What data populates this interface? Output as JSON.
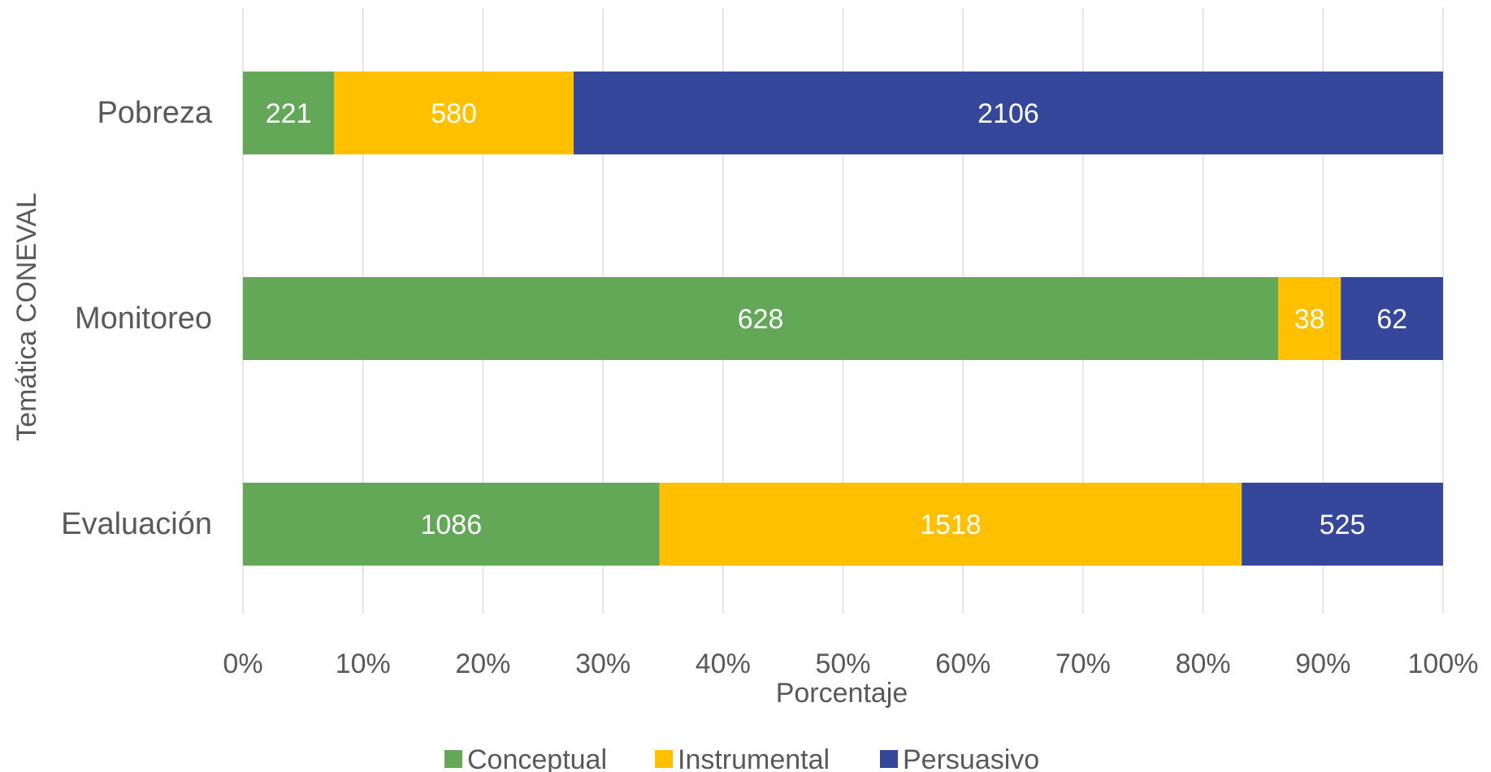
{
  "chart_data": {
    "type": "bar",
    "orientation": "horizontal",
    "stacking": "percent",
    "categories": [
      "Pobreza",
      "Monitoreo",
      "Evaluación"
    ],
    "series": [
      {
        "name": "Conceptual",
        "color": "#62A857",
        "values": [
          221,
          628,
          1086
        ]
      },
      {
        "name": "Instrumental",
        "color": "#FFC000",
        "values": [
          580,
          38,
          1518
        ]
      },
      {
        "name": "Persuasivo",
        "color": "#34479B",
        "values": [
          2106,
          62,
          525
        ]
      }
    ],
    "xlabel": "Porcentaje",
    "ylabel": "Temática CONEVAL",
    "xlim": [
      0,
      100
    ],
    "x_ticks": [
      "0%",
      "10%",
      "20%",
      "30%",
      "40%",
      "50%",
      "60%",
      "70%",
      "80%",
      "90%",
      "100%"
    ],
    "grid": true,
    "legend_position": "bottom",
    "data_labels": true
  }
}
